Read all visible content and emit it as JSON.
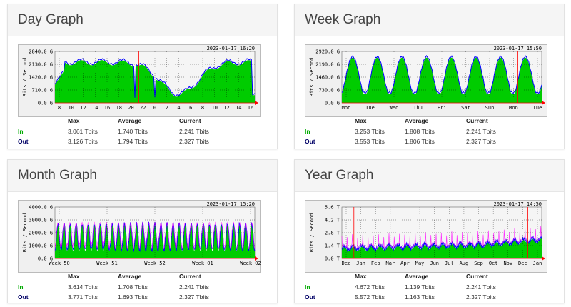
{
  "cards": [
    {
      "id": "day",
      "title": "Day Graph",
      "stamp": "2023-01-17 16:20",
      "ylabel": "Bits / Second",
      "yticks": [
        "2840.0 G",
        "2130.0 G",
        "1420.0 G",
        "710.0 G",
        "0.0 G"
      ],
      "xticks": [
        "8",
        "10",
        "12",
        "14",
        "16",
        "18",
        "20",
        "22",
        "0",
        "2",
        "4",
        "6",
        "8",
        "10",
        "12",
        "14",
        "16"
      ],
      "stats": {
        "headers": [
          "Max",
          "Average",
          "Current"
        ],
        "in": {
          "label": "In",
          "max": "3.061 Tbits",
          "avg": "1.740 Tbits",
          "cur": "2.241 Tbits"
        },
        "out": {
          "label": "Out",
          "max": "3.126 Tbits",
          "avg": "1.794 Tbits",
          "cur": "2.327 Tbits"
        }
      }
    },
    {
      "id": "week",
      "title": "Week Graph",
      "stamp": "2023-01-17 15:50",
      "ylabel": "Bits / Second",
      "yticks": [
        "2920.0 G",
        "2190.0 G",
        "1460.0 G",
        "730.0 G",
        "0.0 G"
      ],
      "xticks": [
        "Mon",
        "Tue",
        "Wed",
        "Thu",
        "Fri",
        "Sat",
        "Sun",
        "Mon",
        "Tue"
      ],
      "stats": {
        "headers": [
          "Max",
          "Average",
          "Current"
        ],
        "in": {
          "label": "In",
          "max": "3.253 Tbits",
          "avg": "1.808 Tbits",
          "cur": "2.241 Tbits"
        },
        "out": {
          "label": "Out",
          "max": "3.553 Tbits",
          "avg": "1.806 Tbits",
          "cur": "2.327 Tbits"
        }
      }
    },
    {
      "id": "month",
      "title": "Month Graph",
      "stamp": "2023-01-17 15:20",
      "ylabel": "Bits / Second",
      "yticks": [
        "4000.0 G",
        "3000.0 G",
        "2000.0 G",
        "1000.0 G",
        "0.0 G"
      ],
      "xticks": [
        "Week 50",
        "Week 51",
        "Week 52",
        "Week 01",
        "Week 02"
      ],
      "stats": {
        "headers": [
          "Max",
          "Average",
          "Current"
        ],
        "in": {
          "label": "In",
          "max": "3.614 Tbits",
          "avg": "1.708 Tbits",
          "cur": "2.241 Tbits"
        },
        "out": {
          "label": "Out",
          "max": "3.771 Tbits",
          "avg": "1.693 Tbits",
          "cur": "2.327 Tbits"
        }
      }
    },
    {
      "id": "year",
      "title": "Year Graph",
      "stamp": "2023-01-17 14:50",
      "ylabel": "Bits / Second",
      "yticks": [
        "5.6 T",
        "4.2 T",
        "2.8 T",
        "1.4 T",
        "0.0 T"
      ],
      "xticks": [
        "Dec",
        "Jan",
        "Feb",
        "Mar",
        "Apr",
        "May",
        "Jun",
        "Jul",
        "Aug",
        "Sep",
        "Oct",
        "Nov",
        "Dec",
        "Jan"
      ],
      "stats": {
        "headers": [
          "Max",
          "Average",
          "Current"
        ],
        "in": {
          "label": "In",
          "max": "4.672 Tbits",
          "avg": "1.139 Tbits",
          "cur": "2.241 Tbits"
        },
        "out": {
          "label": "Out",
          "max": "5.572 Tbits",
          "avg": "1.163 Tbits",
          "cur": "2.327 Tbits"
        }
      }
    }
  ],
  "colors": {
    "in_fill": "#00cc00",
    "out_line": "#0000ff",
    "max_line": "#ff00ff",
    "plot_bg": "#f5f5f5",
    "grid": "#000000",
    "marker": "#ff0000"
  }
}
